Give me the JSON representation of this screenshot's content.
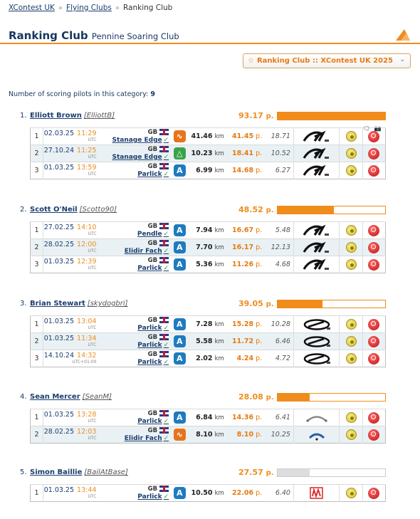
{
  "breadcrumb": {
    "items": [
      "XContest UK",
      "Flying Clubs",
      "Ranking Club"
    ]
  },
  "header": {
    "title": "Ranking Club",
    "subtitle": "Pennine Soaring Club"
  },
  "selector": {
    "star": "☆",
    "value": "Ranking Club :: XContest UK 2025"
  },
  "summary": {
    "label": "Number of scoring pilots in this category:",
    "count": "9"
  },
  "units": {
    "km": "km",
    "points": "p.",
    "utc": "UTC"
  },
  "colors": {
    "accent": "#f08c1c",
    "link": "#1b3d6e",
    "row_alt": "#e9f1f4"
  },
  "pilots": [
    {
      "rank": "1.",
      "name": "Elliott Brown",
      "nick": "[ElliottB]",
      "points": "93.17",
      "bar_fraction": 1.0,
      "bar_style": "orange",
      "flights": [
        {
          "no": "1",
          "date": "02.03.25",
          "time": "11:29",
          "tz": "UTC",
          "country": "GB",
          "site": "Stanage Edge",
          "type": "orange",
          "type_icon": "free-triangle-icon",
          "km": "41.46",
          "points": "41.45",
          "speed": "18.71",
          "glider": "ozone-logo",
          "extras": "comment-icon, camera-icon"
        },
        {
          "no": "2",
          "date": "27.10.24",
          "time": "11:25",
          "tz": "UTC",
          "country": "GB",
          "site": "Stanage Edge",
          "type": "green",
          "type_icon": "flat-triangle-icon",
          "km": "10.23",
          "points": "18.41",
          "speed": "10.52",
          "glider": "ozone-logo",
          "extras": ""
        },
        {
          "no": "3",
          "date": "01.03.25",
          "time": "13:59",
          "tz": "UTC",
          "country": "GB",
          "site": "Parlick",
          "type": "blue",
          "type_icon": "free-flight-icon",
          "km": "6.99",
          "points": "14.68",
          "speed": "6.27",
          "glider": "ozone-logo",
          "extras": ""
        }
      ]
    },
    {
      "rank": "2.",
      "name": "Scott O'Neil",
      "nick": "[Scotto90]",
      "points": "48.52",
      "bar_fraction": 0.52,
      "bar_style": "orange",
      "flights": [
        {
          "no": "1",
          "date": "27.02.25",
          "time": "14:10",
          "tz": "UTC",
          "country": "GB",
          "site": "Pendle",
          "type": "blue",
          "type_icon": "free-flight-icon",
          "km": "7.94",
          "points": "16.67",
          "speed": "5.48",
          "glider": "ozone-logo",
          "extras": ""
        },
        {
          "no": "2",
          "date": "28.02.25",
          "time": "12:00",
          "tz": "UTC",
          "country": "GB",
          "site": "Elidir Fach",
          "type": "blue",
          "type_icon": "free-flight-icon",
          "km": "7.70",
          "points": "16.17",
          "speed": "12.13",
          "glider": "ozone-logo",
          "extras": ""
        },
        {
          "no": "3",
          "date": "01.03.25",
          "time": "12:39",
          "tz": "UTC",
          "country": "GB",
          "site": "Parlick",
          "type": "blue",
          "type_icon": "free-flight-icon",
          "km": "5.36",
          "points": "11.26",
          "speed": "4.68",
          "glider": "ozone-logo",
          "extras": ""
        }
      ]
    },
    {
      "rank": "3.",
      "name": "Brian Stewart",
      "nick": "[skydogbri]",
      "points": "39.05",
      "bar_fraction": 0.42,
      "bar_style": "orange",
      "flights": [
        {
          "no": "1",
          "date": "01.03.25",
          "time": "13:04",
          "tz": "UTC",
          "country": "GB",
          "site": "Parlick",
          "type": "blue",
          "type_icon": "free-flight-icon",
          "km": "7.28",
          "points": "15.28",
          "speed": "10.28",
          "glider": "gin-logo",
          "extras": ""
        },
        {
          "no": "2",
          "date": "01.03.25",
          "time": "11:34",
          "tz": "UTC",
          "country": "GB",
          "site": "Parlick",
          "type": "blue",
          "type_icon": "free-flight-icon",
          "km": "5.58",
          "points": "11.72",
          "speed": "6.46",
          "glider": "gin-logo",
          "extras": ""
        },
        {
          "no": "3",
          "date": "14.10.24",
          "time": "14:32",
          "tz": "UTC+01:00",
          "country": "GB",
          "site": "Parlick",
          "type": "blue",
          "type_icon": "free-flight-icon",
          "km": "2.02",
          "points": "4.24",
          "speed": "4.72",
          "glider": "gin-logo",
          "extras": ""
        }
      ]
    },
    {
      "rank": "4.",
      "name": "Sean Mercer",
      "nick": "[SeanM]",
      "points": "28.08",
      "bar_fraction": 0.3,
      "bar_style": "orange",
      "flights": [
        {
          "no": "1",
          "date": "01.03.25",
          "time": "13:28",
          "tz": "UTC",
          "country": "GB",
          "site": "Parlick",
          "type": "blue",
          "type_icon": "free-flight-icon",
          "km": "6.84",
          "points": "14.36",
          "speed": "6.41",
          "glider": "wing-logo-gray",
          "extras": ""
        },
        {
          "no": "2",
          "date": "28.02.25",
          "time": "12:03",
          "tz": "UTC",
          "country": "GB",
          "site": "Elidir Fach",
          "type": "orange",
          "type_icon": "free-triangle-icon",
          "km": "8.10",
          "points": "8.10",
          "speed": "10.25",
          "glider": "wing-logo-blue",
          "extras": ""
        }
      ]
    },
    {
      "rank": "5.",
      "name": "Simon Baillie",
      "nick": "[BailAtBase]",
      "points": "27.57",
      "bar_fraction": 0.3,
      "bar_style": "gray",
      "flights": [
        {
          "no": "1",
          "date": "01.03.25",
          "time": "13:44",
          "tz": "UTC",
          "country": "GB",
          "site": "Parlick",
          "type": "blue",
          "type_icon": "free-flight-icon",
          "km": "10.50",
          "points": "22.06",
          "speed": "6.40",
          "glider": "red-brand-logo",
          "extras": ""
        }
      ]
    }
  ]
}
